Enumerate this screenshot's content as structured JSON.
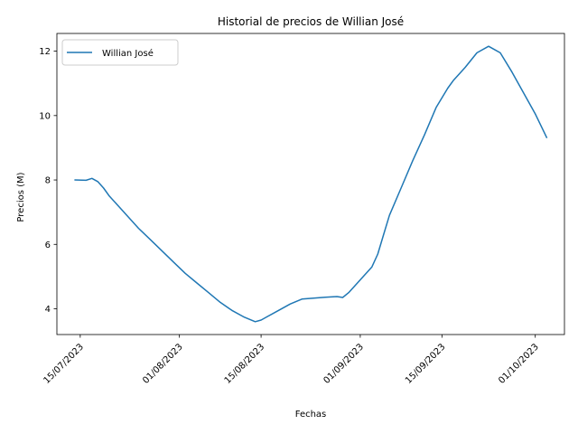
{
  "chart_data": {
    "type": "line",
    "title": "Historial de precios de Willian José",
    "xlabel": "Fechas",
    "ylabel": "Precios (M)",
    "legend_position": "upper-left",
    "grid": false,
    "line_color": "#1f77b4",
    "xlim": [
      "2023-07-11",
      "2023-10-06"
    ],
    "ylim": [
      3.2,
      12.55
    ],
    "x_ticks": [
      "15/07/2023",
      "01/08/2023",
      "15/08/2023",
      "01/09/2023",
      "15/09/2023",
      "01/10/2023"
    ],
    "y_ticks": [
      "4",
      "6",
      "8",
      "10",
      "12"
    ],
    "series": [
      {
        "name": "Willian José",
        "x": [
          "2023-07-14",
          "2023-07-16",
          "2023-07-17",
          "2023-07-18",
          "2023-07-19",
          "2023-07-20",
          "2023-07-21",
          "2023-07-23",
          "2023-07-25",
          "2023-07-27",
          "2023-07-29",
          "2023-07-31",
          "2023-08-02",
          "2023-08-04",
          "2023-08-06",
          "2023-08-08",
          "2023-08-10",
          "2023-08-12",
          "2023-08-14",
          "2023-08-15",
          "2023-08-16",
          "2023-08-18",
          "2023-08-20",
          "2023-08-22",
          "2023-08-24",
          "2023-08-26",
          "2023-08-28",
          "2023-08-29",
          "2023-08-30",
          "2023-09-01",
          "2023-09-03",
          "2023-09-04",
          "2023-09-05",
          "2023-09-06",
          "2023-09-08",
          "2023-09-10",
          "2023-09-12",
          "2023-09-14",
          "2023-09-16",
          "2023-09-17",
          "2023-09-19",
          "2023-09-21",
          "2023-09-23",
          "2023-09-24",
          "2023-09-25",
          "2023-09-27",
          "2023-09-29",
          "2023-10-01",
          "2023-10-03"
        ],
        "values": [
          8.0,
          7.99,
          8.05,
          7.95,
          7.75,
          7.5,
          7.3,
          6.9,
          6.5,
          6.15,
          5.8,
          5.45,
          5.1,
          4.8,
          4.5,
          4.2,
          3.95,
          3.75,
          3.6,
          3.65,
          3.75,
          3.95,
          4.15,
          4.3,
          4.33,
          4.36,
          4.38,
          4.35,
          4.5,
          4.9,
          5.3,
          5.7,
          6.3,
          6.9,
          7.75,
          8.6,
          9.4,
          10.25,
          10.85,
          11.1,
          11.5,
          11.95,
          12.15,
          12.05,
          11.95,
          11.35,
          10.7,
          10.05,
          9.3
        ]
      }
    ]
  }
}
